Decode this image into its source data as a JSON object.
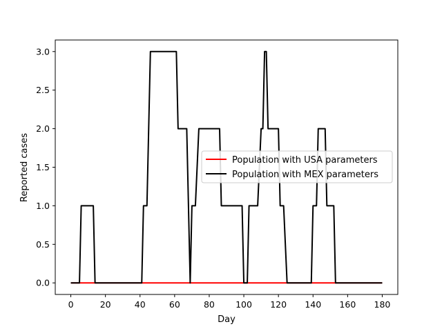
{
  "chart_data": {
    "type": "line",
    "xlabel": "Day",
    "ylabel": "Reported cases",
    "xlim": [
      -9,
      189
    ],
    "ylim": [
      -0.15,
      3.15
    ],
    "xticks": [
      0,
      20,
      40,
      60,
      80,
      100,
      120,
      140,
      160,
      180
    ],
    "xtick_labels": [
      "0",
      "20",
      "40",
      "60",
      "80",
      "100",
      "120",
      "140",
      "160",
      "180"
    ],
    "yticks": [
      0.0,
      0.5,
      1.0,
      1.5,
      2.0,
      2.5,
      3.0
    ],
    "ytick_labels": [
      "0.0",
      "0.5",
      "1.0",
      "1.5",
      "2.0",
      "2.5",
      "3.0"
    ],
    "grid": false,
    "legend_position": "center-right",
    "series": [
      {
        "name": "Population with USA parameters",
        "color": "#ff0000",
        "x": [
          0,
          180
        ],
        "y": [
          0,
          0
        ]
      },
      {
        "name": "Population with MEX parameters",
        "color": "#000000",
        "x": [
          0,
          5,
          6,
          13,
          14,
          41,
          42,
          44,
          46,
          61,
          62,
          67,
          69,
          70,
          72,
          74,
          75,
          86,
          87,
          99,
          100,
          102,
          103,
          108,
          110,
          111,
          112,
          113,
          114,
          120,
          121,
          123,
          125,
          139,
          140,
          142,
          143,
          147,
          148,
          152,
          153,
          180
        ],
        "y": [
          0,
          0,
          1,
          1,
          0,
          0,
          1,
          1,
          3,
          3,
          2,
          2,
          0,
          1,
          1,
          2,
          2,
          2,
          1,
          1,
          0,
          0,
          1,
          1,
          2,
          2,
          3,
          3,
          2,
          2,
          1,
          1,
          0,
          0,
          1,
          1,
          2,
          2,
          1,
          1,
          0,
          0
        ]
      }
    ]
  }
}
